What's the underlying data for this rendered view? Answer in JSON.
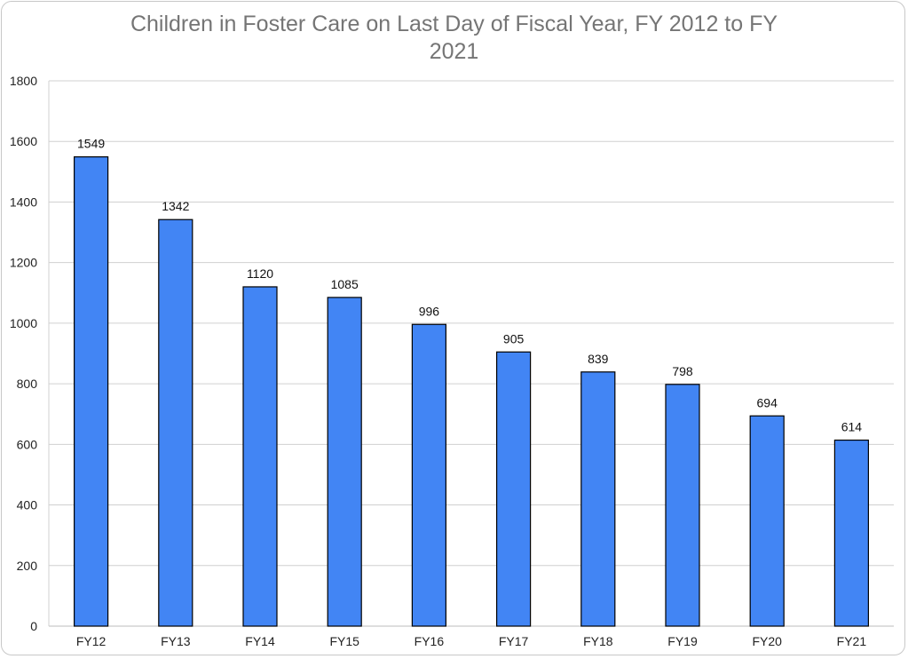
{
  "chart_data": {
    "type": "bar",
    "title_lines": [
      "Children in Foster Care on Last Day of Fiscal Year, FY 2012 to FY",
      "2021"
    ],
    "categories": [
      "FY12",
      "FY13",
      "FY14",
      "FY15",
      "FY16",
      "FY17",
      "FY18",
      "FY19",
      "FY20",
      "FY21"
    ],
    "values": [
      1549,
      1342,
      1120,
      1085,
      996,
      905,
      839,
      798,
      694,
      614
    ],
    "xlabel": "",
    "ylabel": "",
    "ylim": [
      0,
      1800
    ],
    "yticks": [
      0,
      200,
      400,
      600,
      800,
      1000,
      1200,
      1400,
      1600,
      1800
    ],
    "grid": true,
    "data_labels": true,
    "legend": "none",
    "colors": {
      "bar": "#4285F4",
      "bar_stroke": "#000000",
      "grid": "#d0d0d0",
      "title": "#757575"
    }
  }
}
